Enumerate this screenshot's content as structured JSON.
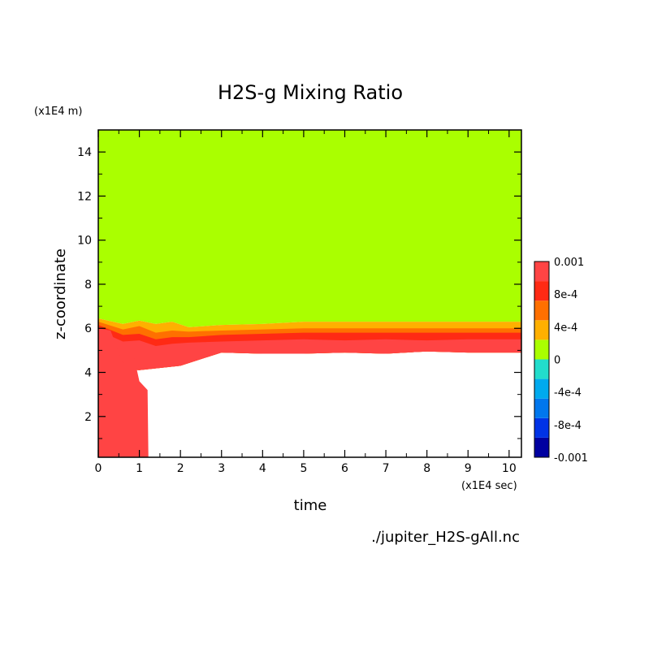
{
  "chart_data": {
    "type": "heatmap",
    "title": "H2S-g Mixing Ratio",
    "xlabel": "time",
    "ylabel": "z-coordinate",
    "x_unit": "(x1E4 sec)",
    "y_unit": "(x1E4 m)",
    "xlim": [
      0,
      10.3
    ],
    "ylim": [
      0.15,
      15
    ],
    "x_ticks": [
      "0",
      "1",
      "2",
      "3",
      "4",
      "5",
      "6",
      "7",
      "8",
      "9",
      "10"
    ],
    "y_ticks": [
      "2",
      "4",
      "6",
      "8",
      "10",
      "12",
      "14"
    ],
    "colorbar": {
      "labels": [
        "0.001",
        "8e-4",
        "4e-4",
        "0",
        "-4e-4",
        "-8e-4",
        "-0.001"
      ],
      "colors": [
        "#0000a0",
        "#0033e6",
        "#0077ee",
        "#00aaee",
        "#22ddcc",
        "#aaff00",
        "#ffb000",
        "#ff7000",
        "#ff2a14",
        "#ff4444"
      ]
    },
    "layers": [
      {
        "name": "orange-band",
        "color": "#ffb000",
        "top": [
          [
            0,
            6.45
          ],
          [
            0.6,
            6.2
          ],
          [
            1,
            6.35
          ],
          [
            1.4,
            6.2
          ],
          [
            1.8,
            6.3
          ],
          [
            2.2,
            6.05
          ],
          [
            3,
            6.15
          ],
          [
            4,
            6.2
          ],
          [
            5,
            6.3
          ],
          [
            6,
            6.3
          ],
          [
            7,
            6.3
          ],
          [
            8,
            6.3
          ],
          [
            9,
            6.3
          ],
          [
            10.3,
            6.3
          ]
        ],
        "bottom": [
          [
            0,
            4.2
          ],
          [
            1,
            4.1
          ],
          [
            2,
            4.3
          ],
          [
            3,
            4.9
          ],
          [
            4,
            4.85
          ],
          [
            5,
            4.85
          ],
          [
            6,
            4.9
          ],
          [
            7,
            4.85
          ],
          [
            8,
            4.95
          ],
          [
            9,
            4.9
          ],
          [
            10.3,
            4.9
          ]
        ]
      },
      {
        "name": "dark-orange-band",
        "color": "#ff7000",
        "top": [
          [
            0,
            6.3
          ],
          [
            0.6,
            5.95
          ],
          [
            1,
            6.1
          ],
          [
            1.4,
            5.8
          ],
          [
            1.8,
            5.9
          ],
          [
            2.2,
            5.85
          ],
          [
            3,
            5.9
          ],
          [
            4,
            5.95
          ],
          [
            5,
            6.0
          ],
          [
            6,
            6.0
          ],
          [
            7,
            6.0
          ],
          [
            8,
            6.0
          ],
          [
            9,
            6.0
          ],
          [
            10.3,
            6.0
          ]
        ],
        "bottom": [
          [
            0,
            4.2
          ],
          [
            1,
            4.1
          ],
          [
            2,
            4.3
          ],
          [
            3,
            4.9
          ],
          [
            4,
            4.85
          ],
          [
            5,
            4.85
          ],
          [
            6,
            4.9
          ],
          [
            7,
            4.85
          ],
          [
            8,
            4.95
          ],
          [
            9,
            4.9
          ],
          [
            10.3,
            4.9
          ]
        ]
      },
      {
        "name": "red-band",
        "color": "#ff2a14",
        "top": [
          [
            0,
            6.15
          ],
          [
            0.6,
            5.7
          ],
          [
            1,
            5.75
          ],
          [
            1.4,
            5.5
          ],
          [
            1.8,
            5.6
          ],
          [
            2.2,
            5.6
          ],
          [
            3,
            5.7
          ],
          [
            4,
            5.75
          ],
          [
            5,
            5.8
          ],
          [
            6,
            5.8
          ],
          [
            7,
            5.8
          ],
          [
            8,
            5.8
          ],
          [
            9,
            5.8
          ],
          [
            10.3,
            5.8
          ]
        ],
        "bottom": [
          [
            0,
            4.2
          ],
          [
            1,
            4.1
          ],
          [
            2,
            4.3
          ],
          [
            3,
            4.9
          ],
          [
            4,
            4.85
          ],
          [
            5,
            4.85
          ],
          [
            6,
            4.9
          ],
          [
            7,
            4.85
          ],
          [
            8,
            4.95
          ],
          [
            9,
            4.9
          ],
          [
            10.3,
            4.9
          ]
        ]
      },
      {
        "name": "light-red-band",
        "color": "#ff4444",
        "top": [
          [
            0,
            5.9
          ],
          [
            0.6,
            5.4
          ],
          [
            1,
            5.45
          ],
          [
            1.4,
            5.2
          ],
          [
            1.8,
            5.3
          ],
          [
            2.2,
            5.35
          ],
          [
            3,
            5.4
          ],
          [
            4,
            5.45
          ],
          [
            5,
            5.5
          ],
          [
            6,
            5.45
          ],
          [
            7,
            5.5
          ],
          [
            8,
            5.45
          ],
          [
            9,
            5.5
          ],
          [
            10.3,
            5.5
          ]
        ],
        "bottom": [
          [
            0,
            4.2
          ],
          [
            1,
            4.1
          ],
          [
            2,
            4.3
          ],
          [
            3,
            4.9
          ],
          [
            4,
            4.85
          ],
          [
            5,
            4.85
          ],
          [
            6,
            4.9
          ],
          [
            7,
            4.85
          ],
          [
            8,
            4.95
          ],
          [
            9,
            4.9
          ],
          [
            10.3,
            4.9
          ]
        ]
      },
      {
        "name": "early-column",
        "color": "#ff4444",
        "top": [
          [
            0,
            6.0
          ],
          [
            0.3,
            5.9
          ],
          [
            0.6,
            4.4
          ],
          [
            0.8,
            5.3
          ],
          [
            1.0,
            3.6
          ],
          [
            1.2,
            3.2
          ]
        ],
        "bottom": [
          [
            0,
            0.15
          ],
          [
            1.22,
            0.15
          ]
        ]
      }
    ]
  },
  "footer": {
    "filename": "./jupiter_H2S-gAll.nc"
  }
}
